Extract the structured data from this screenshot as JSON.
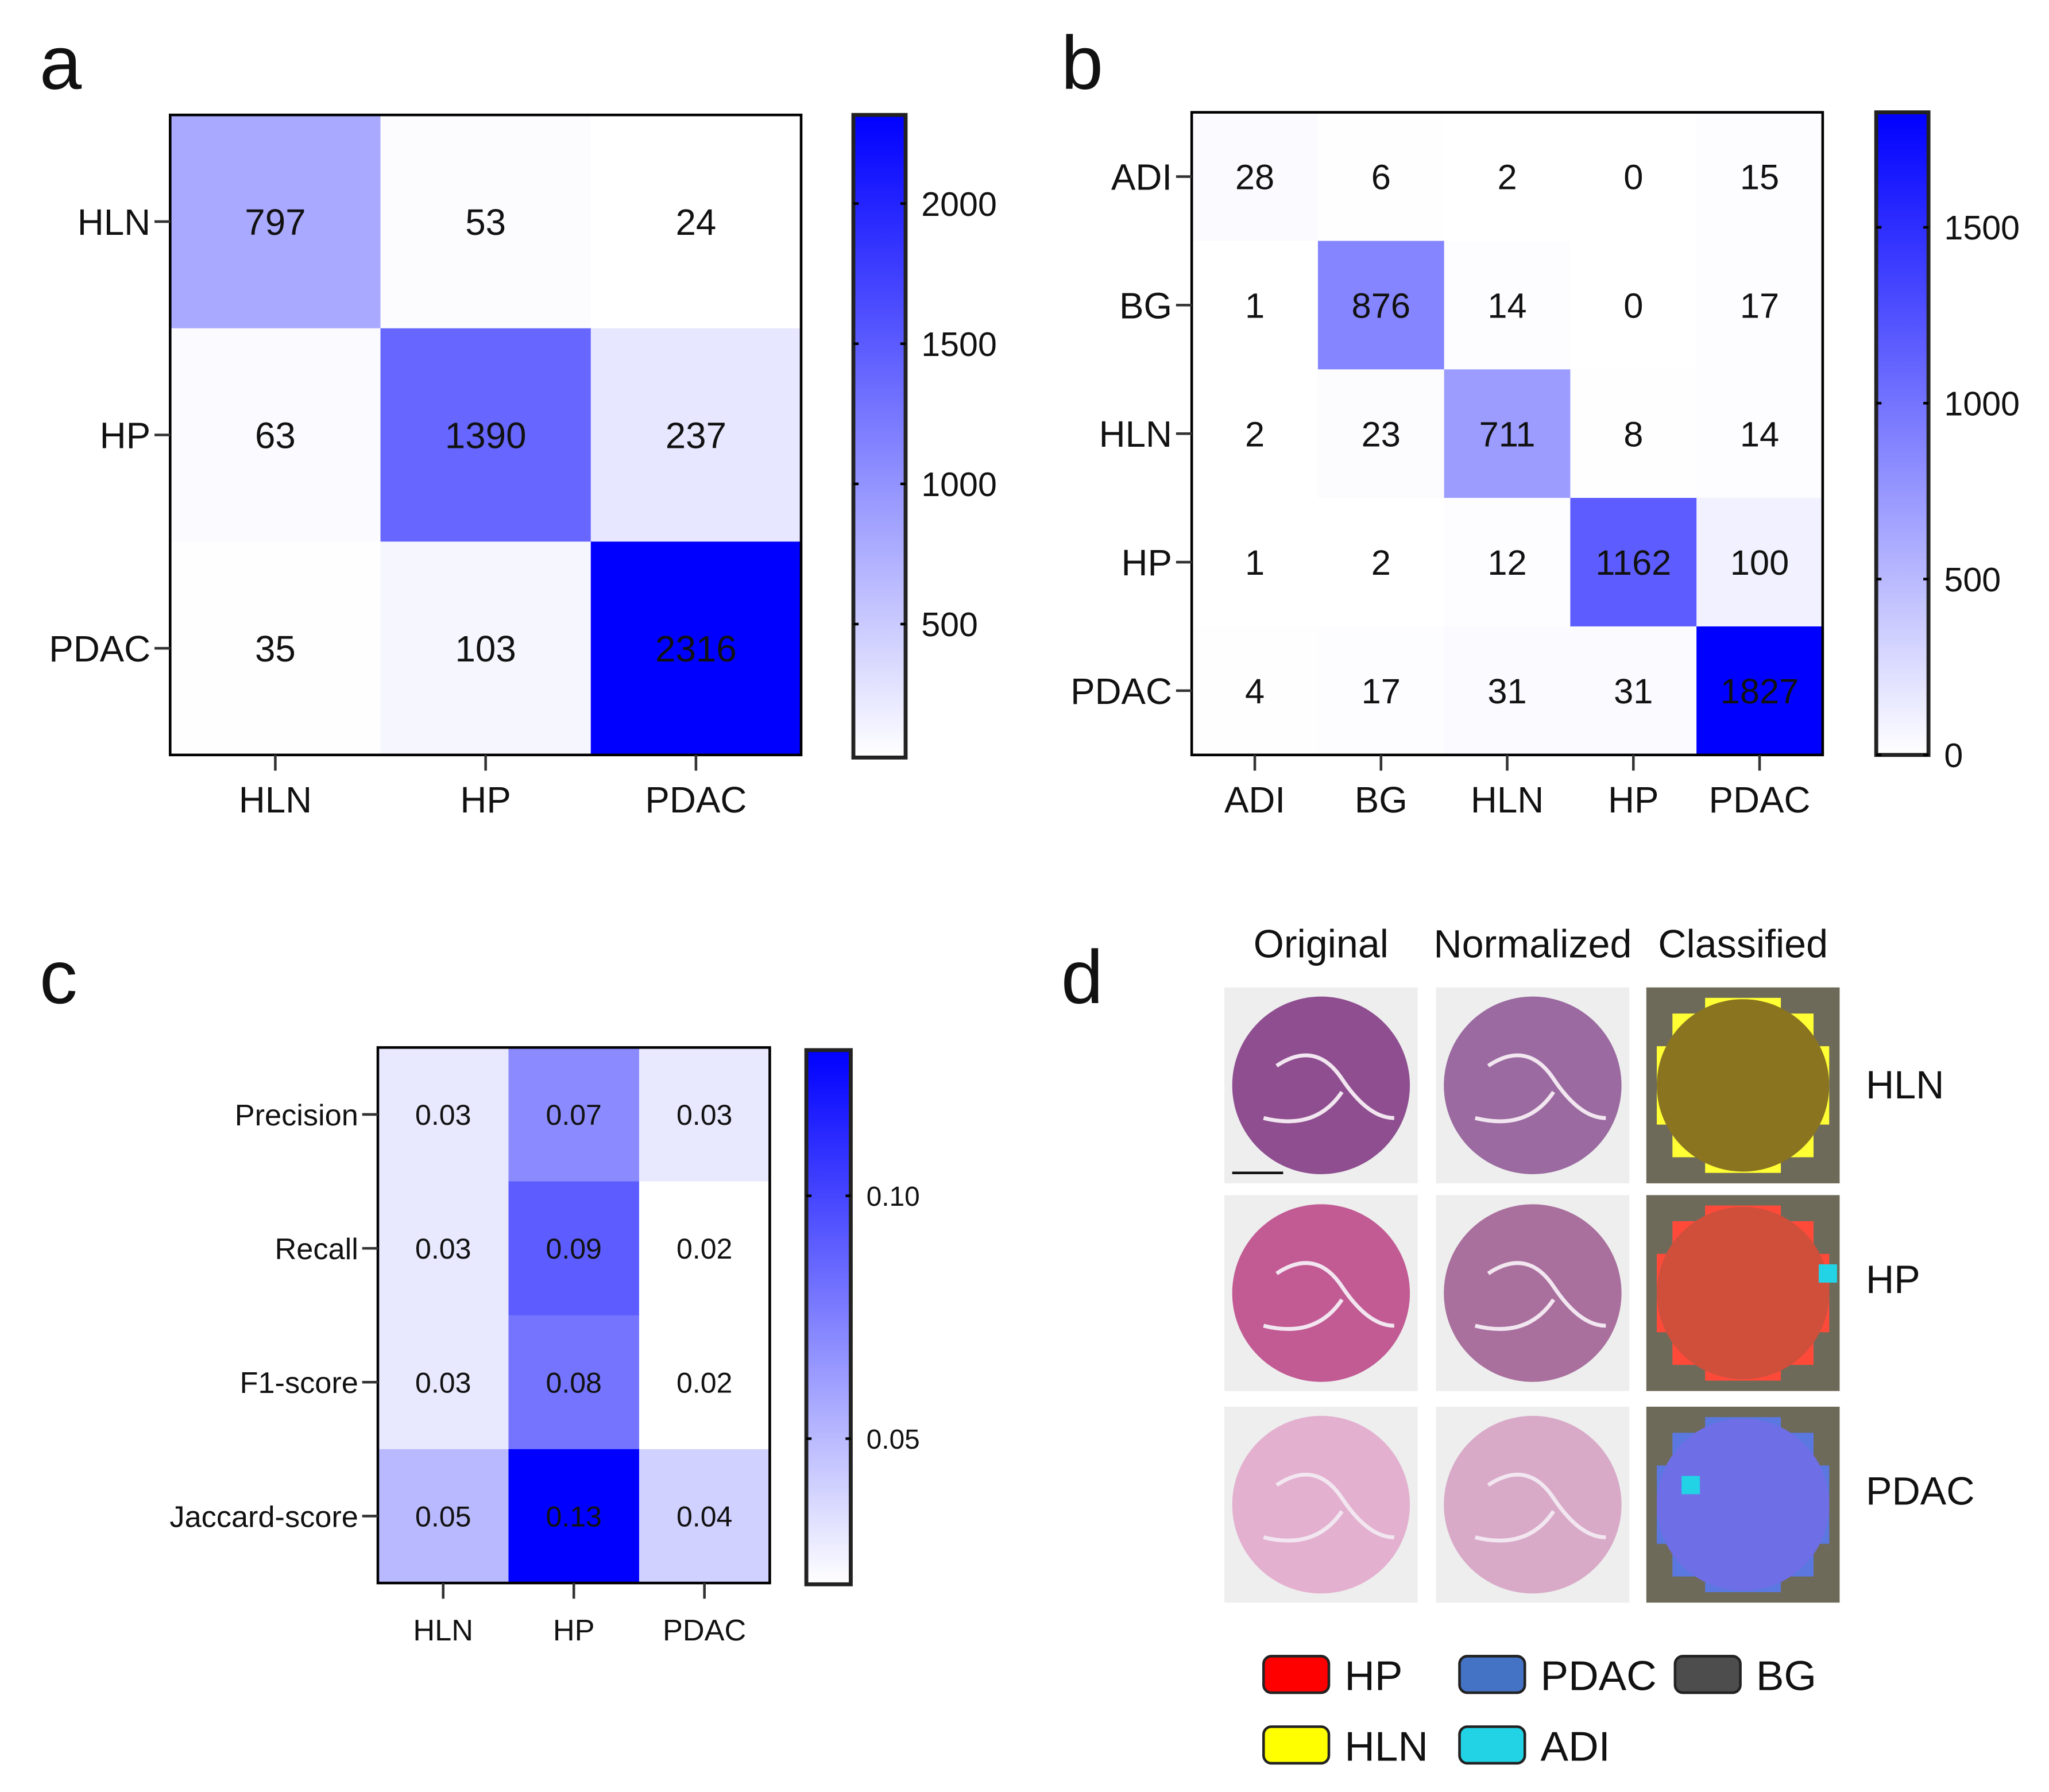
{
  "panel_labels": {
    "a": "a",
    "b": "b",
    "c": "c",
    "d": "d"
  },
  "chart_data": [
    {
      "id": "a",
      "type": "heatmap",
      "title": "",
      "rows": [
        "HLN",
        "HP",
        "PDAC"
      ],
      "cols": [
        "HLN",
        "HP",
        "PDAC"
      ],
      "values": [
        [
          797,
          53,
          24
        ],
        [
          63,
          1390,
          237
        ],
        [
          35,
          103,
          2316
        ]
      ],
      "value_labels": [
        [
          "797",
          "53",
          "24"
        ],
        [
          "63",
          "1390",
          "237"
        ],
        [
          "35",
          "103",
          "2316"
        ]
      ],
      "colorbar": {
        "range": [
          24,
          2316
        ],
        "ticks": [
          500,
          1000,
          1500,
          2000
        ],
        "tick_labels": [
          "500",
          "1000",
          "1500",
          "2000"
        ],
        "low_color": "#ffffff",
        "high_color": "#0000ff"
      }
    },
    {
      "id": "b",
      "type": "heatmap",
      "title": "",
      "rows": [
        "ADI",
        "BG",
        "HLN",
        "HP",
        "PDAC"
      ],
      "cols": [
        "ADI",
        "BG",
        "HLN",
        "HP",
        "PDAC"
      ],
      "values": [
        [
          28,
          6,
          2,
          0,
          15
        ],
        [
          1,
          876,
          14,
          0,
          17
        ],
        [
          2,
          23,
          711,
          8,
          14
        ],
        [
          1,
          2,
          12,
          1162,
          100
        ],
        [
          4,
          17,
          31,
          31,
          1827
        ]
      ],
      "value_labels": [
        [
          "28",
          "6",
          "2",
          "0",
          "15"
        ],
        [
          "1",
          "876",
          "14",
          "0",
          "17"
        ],
        [
          "2",
          "23",
          "711",
          "8",
          "14"
        ],
        [
          "1",
          "2",
          "12",
          "1162",
          "100"
        ],
        [
          "4",
          "17",
          "31",
          "31",
          "1827"
        ]
      ],
      "colorbar": {
        "range": [
          0,
          1827
        ],
        "ticks": [
          0,
          500,
          1000,
          1500
        ],
        "tick_labels": [
          "0",
          "500",
          "1000",
          "1500"
        ],
        "low_color": "#ffffff",
        "high_color": "#0000ff"
      }
    },
    {
      "id": "c",
      "type": "heatmap",
      "title": "",
      "rows": [
        "Precision",
        "Recall",
        "F1-score",
        "Jaccard-score"
      ],
      "cols": [
        "HLN",
        "HP",
        "PDAC"
      ],
      "values": [
        [
          0.03,
          0.07,
          0.03
        ],
        [
          0.03,
          0.09,
          0.02
        ],
        [
          0.03,
          0.08,
          0.02
        ],
        [
          0.05,
          0.13,
          0.04
        ]
      ],
      "value_labels": [
        [
          "0.03",
          "0.07",
          "0.03"
        ],
        [
          "0.03",
          "0.09",
          "0.02"
        ],
        [
          "0.03",
          "0.08",
          "0.02"
        ],
        [
          "0.05",
          "0.13",
          "0.04"
        ]
      ],
      "colorbar": {
        "range": [
          0.02,
          0.13
        ],
        "ticks": [
          0.05,
          0.1
        ],
        "tick_labels": [
          "0.05",
          "0.10"
        ],
        "low_color": "#ffffff",
        "high_color": "#0000ff"
      }
    }
  ],
  "panel_d": {
    "column_headers": [
      "Original",
      "Normalized",
      "Classified"
    ],
    "row_labels": [
      "HLN",
      "HP",
      "PDAC"
    ],
    "legend": [
      {
        "label": "HP",
        "color": "#ff0000"
      },
      {
        "label": "PDAC",
        "color": "#4472c4"
      },
      {
        "label": "BG",
        "color": "#4d4d4d"
      },
      {
        "label": "HLN",
        "color": "#ffff00"
      },
      {
        "label": "ADI",
        "color": "#22d3e6"
      }
    ]
  }
}
